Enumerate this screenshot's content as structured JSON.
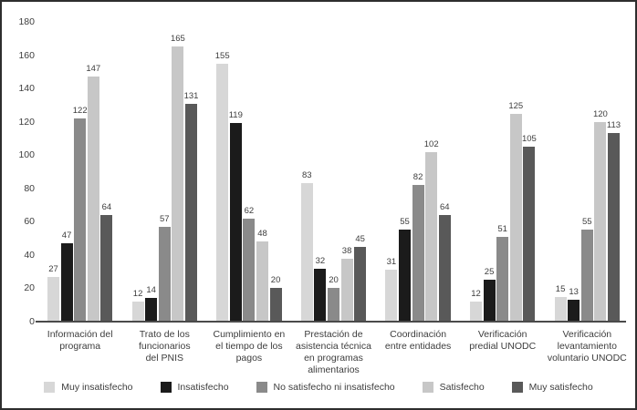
{
  "chart_data": {
    "type": "bar",
    "title": "",
    "xlabel": "",
    "ylabel": "",
    "ylim": [
      0,
      180
    ],
    "y_ticks": [
      0,
      20,
      40,
      60,
      80,
      100,
      120,
      140,
      160,
      180
    ],
    "grid": false,
    "legend_position": "bottom",
    "data_labels": true,
    "categories": [
      "Información del\nprograma",
      "Trato de los\nfuncionarios\ndel PNIS",
      "Cumplimiento en\nel tiempo de los\npagos",
      "Prestación de\nasistencia técnica\nen programas\nalimentarios",
      "Coordinación\nentre entidades",
      "Verificación\npredial UNODC",
      "Verificación\nlevantamiento\nvoluntario UNODC"
    ],
    "series": [
      {
        "name": "Muy insatisfecho",
        "color": "#d7d7d7",
        "values": [
          27,
          12,
          155,
          83,
          31,
          12,
          15
        ]
      },
      {
        "name": "Insatisfecho",
        "color": "#1b1b1b",
        "values": [
          47,
          14,
          119,
          32,
          55,
          25,
          13
        ]
      },
      {
        "name": "No satisfecho ni insatisfecho",
        "color": "#8a8a8a",
        "values": [
          122,
          57,
          62,
          20,
          82,
          51,
          55
        ]
      },
      {
        "name": "Satisfecho",
        "color": "#c7c7c7",
        "values": [
          147,
          165,
          48,
          38,
          102,
          125,
          120
        ]
      },
      {
        "name": "Muy satisfecho",
        "color": "#595959",
        "values": [
          64,
          131,
          20,
          45,
          64,
          105,
          113
        ]
      }
    ]
  }
}
